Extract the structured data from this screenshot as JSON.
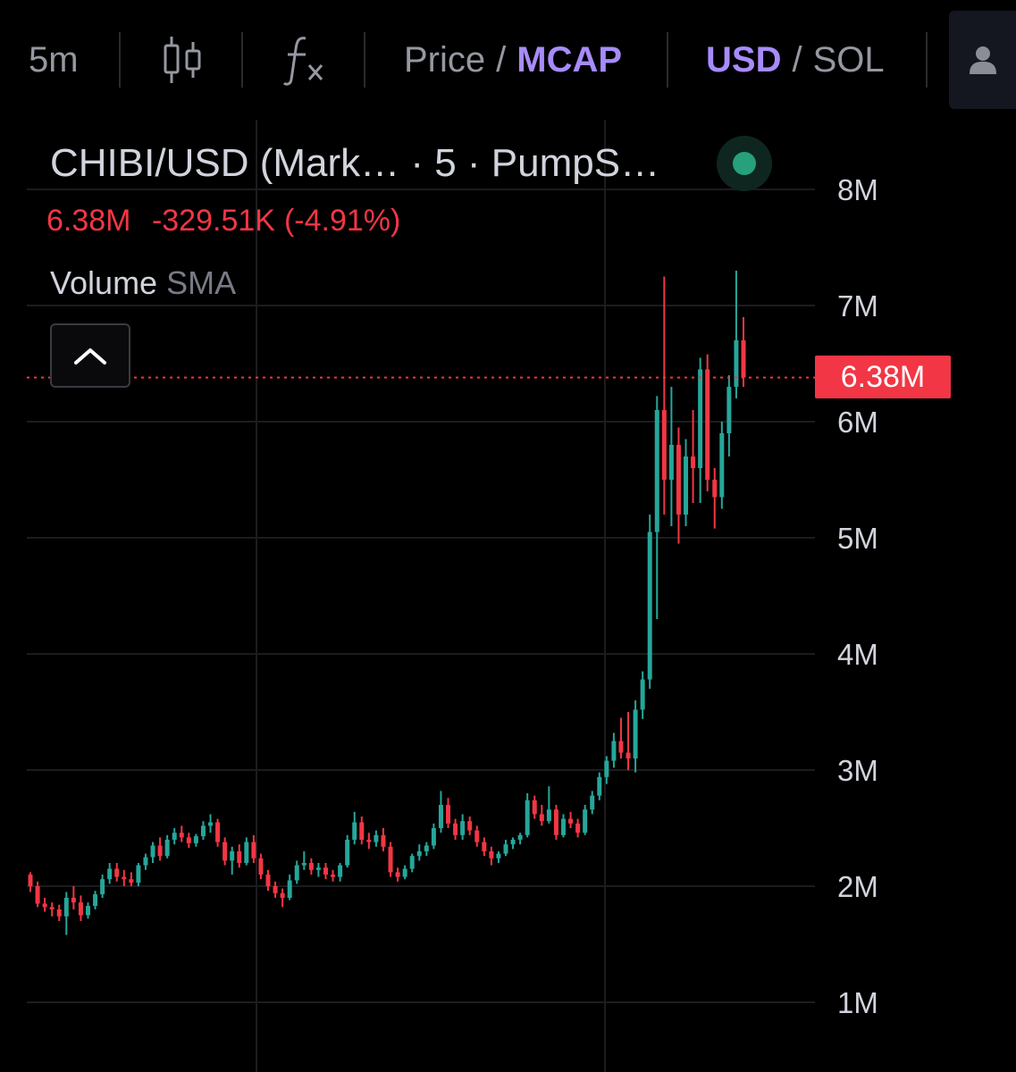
{
  "toolbar": {
    "interval": "5m",
    "price_label": "Price",
    "separator": "/",
    "mcap_label": "MCAP",
    "usd_label": "USD",
    "sol_label": "SOL",
    "candles_icon": "candlestick-icon",
    "indicators_icon": "function-icon",
    "user_icon": "user-icon"
  },
  "legend": {
    "title": "CHIBI/USD (Mark… · 5 · PumpS…",
    "last": "6.38M",
    "change": "-329.51K",
    "change_pct": "(-4.91%)",
    "volume_label": "Volume",
    "sma_label": "SMA"
  },
  "price_tag": "6.38M",
  "colors": {
    "up": "#26a69a",
    "down": "#f23645",
    "accent": "#a78bfa",
    "background": "#000000",
    "status": "#26a17b"
  },
  "chart_data": {
    "type": "candlestick",
    "y_axis_labels": [
      "8M",
      "7M",
      "6M",
      "5M",
      "4M",
      "3M",
      "2M",
      "1M"
    ],
    "y_ticks": [
      8,
      7,
      6,
      5,
      4,
      3,
      2,
      1
    ],
    "y_unit": "M",
    "ylim": [
      0.85,
      8.3
    ],
    "last_value": 6.38,
    "grid": true,
    "candles_ohlc_millions": [
      [
        2.1,
        2.12,
        1.95,
        2.0
      ],
      [
        2.0,
        2.04,
        1.82,
        1.85
      ],
      [
        1.85,
        1.9,
        1.78,
        1.82
      ],
      [
        1.82,
        1.86,
        1.74,
        1.8
      ],
      [
        1.8,
        1.84,
        1.7,
        1.74
      ],
      [
        1.74,
        1.95,
        1.58,
        1.9
      ],
      [
        1.9,
        2.0,
        1.8,
        1.86
      ],
      [
        1.86,
        1.92,
        1.7,
        1.75
      ],
      [
        1.75,
        1.86,
        1.72,
        1.83
      ],
      [
        1.83,
        1.96,
        1.8,
        1.93
      ],
      [
        1.93,
        2.1,
        1.9,
        2.06
      ],
      [
        2.06,
        2.2,
        2.02,
        2.15
      ],
      [
        2.15,
        2.2,
        2.04,
        2.08
      ],
      [
        2.08,
        2.14,
        2.0,
        2.06
      ],
      [
        2.06,
        2.12,
        2.0,
        2.03
      ],
      [
        2.03,
        2.2,
        2.0,
        2.18
      ],
      [
        2.18,
        2.28,
        2.14,
        2.25
      ],
      [
        2.25,
        2.38,
        2.2,
        2.35
      ],
      [
        2.35,
        2.42,
        2.22,
        2.26
      ],
      [
        2.26,
        2.44,
        2.24,
        2.4
      ],
      [
        2.4,
        2.5,
        2.36,
        2.46
      ],
      [
        2.46,
        2.52,
        2.38,
        2.42
      ],
      [
        2.42,
        2.46,
        2.33,
        2.37
      ],
      [
        2.37,
        2.45,
        2.34,
        2.43
      ],
      [
        2.43,
        2.56,
        2.4,
        2.52
      ],
      [
        2.52,
        2.62,
        2.46,
        2.55
      ],
      [
        2.55,
        2.58,
        2.34,
        2.38
      ],
      [
        2.38,
        2.42,
        2.18,
        2.22
      ],
      [
        2.22,
        2.34,
        2.1,
        2.3
      ],
      [
        2.3,
        2.36,
        2.16,
        2.2
      ],
      [
        2.2,
        2.42,
        2.18,
        2.38
      ],
      [
        2.38,
        2.44,
        2.2,
        2.24
      ],
      [
        2.24,
        2.28,
        2.06,
        2.1
      ],
      [
        2.1,
        2.14,
        1.96,
        2.0
      ],
      [
        2.0,
        2.04,
        1.9,
        1.94
      ],
      [
        1.94,
        1.98,
        1.82,
        1.9
      ],
      [
        1.9,
        2.1,
        1.88,
        2.05
      ],
      [
        2.05,
        2.22,
        2.02,
        2.18
      ],
      [
        2.18,
        2.3,
        2.14,
        2.2
      ],
      [
        2.2,
        2.24,
        2.1,
        2.14
      ],
      [
        2.14,
        2.2,
        2.08,
        2.16
      ],
      [
        2.16,
        2.2,
        2.06,
        2.1
      ],
      [
        2.1,
        2.14,
        2.04,
        2.08
      ],
      [
        2.08,
        2.2,
        2.04,
        2.18
      ],
      [
        2.18,
        2.44,
        2.16,
        2.4
      ],
      [
        2.4,
        2.64,
        2.36,
        2.55
      ],
      [
        2.55,
        2.6,
        2.36,
        2.4
      ],
      [
        2.4,
        2.46,
        2.32,
        2.38
      ],
      [
        2.38,
        2.48,
        2.34,
        2.44
      ],
      [
        2.44,
        2.5,
        2.3,
        2.34
      ],
      [
        2.34,
        2.38,
        2.08,
        2.12
      ],
      [
        2.12,
        2.16,
        2.04,
        2.08
      ],
      [
        2.08,
        2.18,
        2.06,
        2.15
      ],
      [
        2.15,
        2.28,
        2.12,
        2.26
      ],
      [
        2.26,
        2.36,
        2.22,
        2.3
      ],
      [
        2.3,
        2.38,
        2.26,
        2.35
      ],
      [
        2.35,
        2.54,
        2.32,
        2.5
      ],
      [
        2.5,
        2.82,
        2.46,
        2.7
      ],
      [
        2.7,
        2.76,
        2.5,
        2.54
      ],
      [
        2.54,
        2.58,
        2.4,
        2.44
      ],
      [
        2.44,
        2.62,
        2.4,
        2.56
      ],
      [
        2.56,
        2.6,
        2.44,
        2.48
      ],
      [
        2.48,
        2.52,
        2.34,
        2.38
      ],
      [
        2.38,
        2.42,
        2.26,
        2.3
      ],
      [
        2.3,
        2.34,
        2.18,
        2.24
      ],
      [
        2.24,
        2.3,
        2.2,
        2.28
      ],
      [
        2.28,
        2.4,
        2.26,
        2.36
      ],
      [
        2.36,
        2.42,
        2.32,
        2.4
      ],
      [
        2.4,
        2.46,
        2.36,
        2.44
      ],
      [
        2.44,
        2.8,
        2.42,
        2.74
      ],
      [
        2.74,
        2.78,
        2.58,
        2.62
      ],
      [
        2.62,
        2.7,
        2.52,
        2.56
      ],
      [
        2.56,
        2.86,
        2.54,
        2.66
      ],
      [
        2.66,
        2.7,
        2.4,
        2.44
      ],
      [
        2.44,
        2.62,
        2.42,
        2.58
      ],
      [
        2.58,
        2.64,
        2.5,
        2.54
      ],
      [
        2.54,
        2.58,
        2.42,
        2.46
      ],
      [
        2.46,
        2.7,
        2.44,
        2.66
      ],
      [
        2.66,
        2.82,
        2.62,
        2.78
      ],
      [
        2.78,
        2.98,
        2.74,
        2.94
      ],
      [
        2.94,
        3.12,
        2.88,
        3.08
      ],
      [
        3.08,
        3.32,
        3.02,
        3.25
      ],
      [
        3.25,
        3.45,
        3.1,
        3.15
      ],
      [
        3.15,
        3.5,
        3.0,
        3.1
      ],
      [
        3.1,
        3.6,
        2.98,
        3.52
      ],
      [
        3.52,
        3.85,
        3.44,
        3.78
      ],
      [
        3.78,
        5.2,
        3.7,
        5.05
      ],
      [
        5.05,
        6.22,
        4.3,
        6.1
      ],
      [
        6.1,
        7.25,
        5.2,
        5.5
      ],
      [
        5.5,
        6.3,
        5.1,
        5.8
      ],
      [
        5.8,
        5.95,
        4.95,
        5.2
      ],
      [
        5.2,
        5.85,
        5.1,
        5.7
      ],
      [
        5.7,
        6.1,
        5.3,
        5.6
      ],
      [
        5.6,
        6.55,
        5.3,
        6.45
      ],
      [
        6.45,
        6.58,
        5.4,
        5.5
      ],
      [
        5.5,
        5.6,
        5.08,
        5.35
      ],
      [
        5.35,
        6.0,
        5.25,
        5.9
      ],
      [
        5.9,
        6.4,
        5.7,
        6.3
      ],
      [
        6.3,
        7.3,
        6.2,
        6.7
      ],
      [
        6.7,
        6.9,
        6.3,
        6.38
      ]
    ]
  }
}
